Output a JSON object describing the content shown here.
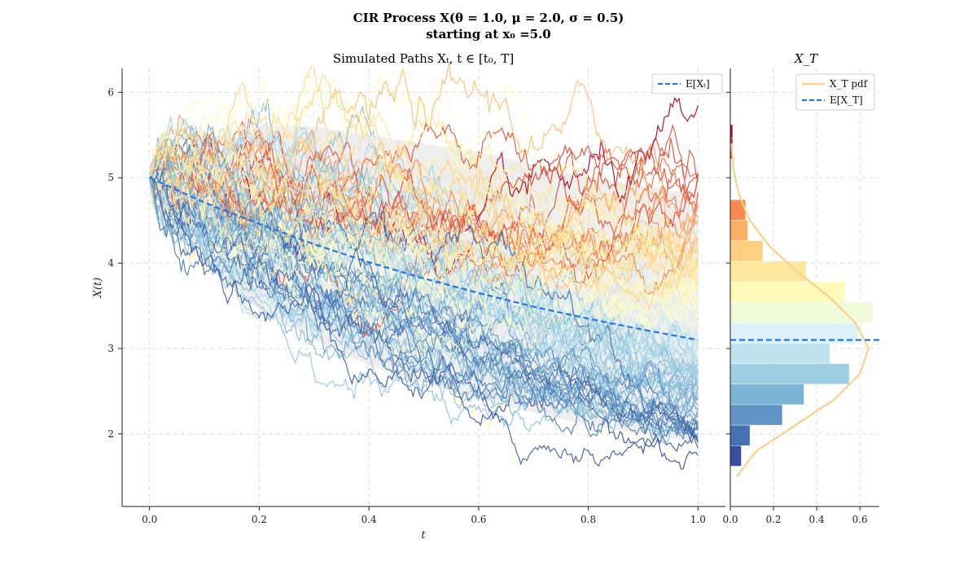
{
  "figure": {
    "title_line1": "CIR Process X(θ = 1.0, μ = 2.0, σ = 0.5)",
    "title_line2": "starting at x₀ =5.0"
  },
  "chart_data": [
    {
      "type": "line",
      "title": "Simulated Paths Xₜ, t ∈ [t₀, T]",
      "xlabel": "t",
      "ylabel": "X(t)",
      "xlim": [
        -0.05,
        1.05
      ],
      "ylim": [
        1.15,
        6.28
      ],
      "xticks": [
        "0.0",
        "0.2",
        "0.4",
        "0.6",
        "0.8",
        "1.0"
      ],
      "yticks": [
        "2",
        "3",
        "4",
        "5",
        "6"
      ],
      "grid": true,
      "legend_position": "top-right",
      "legend": [
        "E[Xₜ]"
      ],
      "expectation": {
        "name": "E[Xₜ]",
        "color": "#1f77e6",
        "x": [
          0.0,
          0.1,
          0.2,
          0.3,
          0.4,
          0.5,
          0.6,
          0.7,
          0.8,
          0.9,
          1.0
        ],
        "y": [
          5.0,
          4.71,
          4.46,
          4.22,
          4.01,
          3.82,
          3.65,
          3.49,
          3.35,
          3.22,
          3.1
        ]
      },
      "envelope": {
        "color": "#d9d9d9",
        "x": [
          0.0,
          0.1,
          0.2,
          0.3,
          0.4,
          0.5,
          0.6,
          0.7,
          0.8,
          0.9,
          1.0
        ],
        "upper": [
          5.0,
          5.45,
          5.6,
          5.6,
          5.5,
          5.4,
          5.3,
          5.15,
          5.0,
          4.9,
          4.8
        ],
        "lower": [
          5.0,
          4.0,
          3.45,
          3.1,
          2.8,
          2.6,
          2.4,
          2.25,
          2.1,
          2.0,
          1.9
        ]
      },
      "paths": {
        "count": 100,
        "x_start": 0.0,
        "x_end": 1.0,
        "start_value": 5.0,
        "colormap": [
          "#313695",
          "#4575b4",
          "#74add1",
          "#abd9e9",
          "#e0f3f8",
          "#ffffbf",
          "#fee090",
          "#fdae61",
          "#f46d43",
          "#d73027",
          "#a50026"
        ],
        "final_value_range": [
          1.6,
          5.6
        ]
      }
    },
    {
      "type": "bar",
      "title": "X_T",
      "orientation": "horizontal",
      "xlim": [
        0.0,
        0.69
      ],
      "xticks": [
        "0.0",
        "0.2",
        "0.4",
        "0.6"
      ],
      "ylim": [
        1.15,
        6.28
      ],
      "grid": true,
      "legend_position": "top-right",
      "legend": [
        "X_T pdf",
        "E[X_T]"
      ],
      "histogram": {
        "bin_edges": [
          1.62,
          1.86,
          2.1,
          2.34,
          2.58,
          2.82,
          3.06,
          3.3,
          3.54,
          3.78,
          4.02,
          4.26,
          4.5,
          4.74,
          4.98,
          5.22,
          5.46,
          5.62
        ],
        "density": [
          0.05,
          0.09,
          0.24,
          0.34,
          0.55,
          0.46,
          0.59,
          0.66,
          0.53,
          0.35,
          0.15,
          0.08,
          0.07,
          0.0,
          0.0,
          0.01,
          0.01
        ]
      },
      "pdf": {
        "name": "X_T pdf",
        "color": "#fdd08a",
        "y": [
          1.5,
          1.8,
          2.1,
          2.4,
          2.7,
          3.0,
          3.3,
          3.6,
          3.9,
          4.2,
          4.5,
          4.8,
          5.1,
          5.4
        ],
        "density": [
          0.03,
          0.12,
          0.3,
          0.48,
          0.6,
          0.64,
          0.58,
          0.46,
          0.31,
          0.18,
          0.09,
          0.04,
          0.015,
          0.005
        ]
      },
      "expectation": {
        "name": "E[X_T]",
        "value": 3.1,
        "color": "#1f77e6"
      }
    }
  ]
}
